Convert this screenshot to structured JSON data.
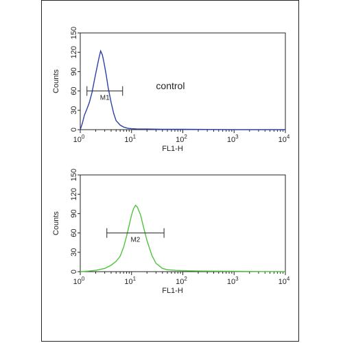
{
  "chart_data": [
    {
      "type": "histogram",
      "xscale": "log",
      "xlim": [
        1,
        10000
      ],
      "ylim": [
        0,
        150
      ],
      "ylabel": "Counts",
      "xlabel": "FL1-H",
      "yticks": [
        "0",
        "30",
        "60",
        "90",
        "120",
        "150"
      ],
      "xticks": [
        {
          "base": "10",
          "exp": "0"
        },
        {
          "base": "10",
          "exp": "1"
        },
        {
          "base": "10",
          "exp": "2"
        },
        {
          "base": "10",
          "exp": "3"
        },
        {
          "base": "10",
          "exp": "4"
        }
      ],
      "line_color": "#2b3fa6",
      "annotation": "control",
      "gate": {
        "label": "M1",
        "from": 1.35,
        "to": 6.7,
        "y": 60
      },
      "series": [
        {
          "x": [
            1.0,
            1.1,
            1.2,
            1.35,
            1.5,
            1.7,
            1.9,
            2.1,
            2.3,
            2.5,
            2.7,
            2.9,
            3.2,
            3.5,
            4.0,
            4.5,
            5.0,
            6.0,
            7.0,
            8.5,
            10,
            13,
            20,
            40,
            100,
            1000,
            10000
          ],
          "y": [
            0,
            10,
            22,
            32,
            42,
            58,
            78,
            95,
            110,
            122,
            116,
            104,
            85,
            65,
            42,
            25,
            14,
            7,
            4,
            2,
            1.5,
            1,
            1,
            0.5,
            0.5,
            0,
            0
          ]
        }
      ]
    },
    {
      "type": "histogram",
      "xscale": "log",
      "xlim": [
        1,
        10000
      ],
      "ylim": [
        0,
        150
      ],
      "ylabel": "Counts",
      "xlabel": "FL1-H",
      "yticks": [
        "0",
        "30",
        "60",
        "90",
        "120",
        "150"
      ],
      "xticks": [
        {
          "base": "10",
          "exp": "0"
        },
        {
          "base": "10",
          "exp": "1"
        },
        {
          "base": "10",
          "exp": "2"
        },
        {
          "base": "10",
          "exp": "3"
        },
        {
          "base": "10",
          "exp": "4"
        }
      ],
      "line_color": "#4fc43c",
      "annotation": "",
      "gate": {
        "label": "M2",
        "from": 3.3,
        "to": 43,
        "y": 60
      },
      "series": [
        {
          "x": [
            1.0,
            1.5,
            2.0,
            3.0,
            4.0,
            5.0,
            6.0,
            7.0,
            8.0,
            9.0,
            10,
            11,
            12,
            13,
            15,
            17,
            20,
            25,
            30,
            40,
            50,
            70,
            100,
            200,
            1000,
            10000
          ],
          "y": [
            0,
            1,
            2,
            5,
            10,
            16,
            24,
            38,
            55,
            72,
            88,
            98,
            103,
            100,
            88,
            70,
            48,
            25,
            13,
            5,
            3,
            2,
            1.5,
            1,
            0.5,
            0
          ]
        }
      ]
    }
  ]
}
